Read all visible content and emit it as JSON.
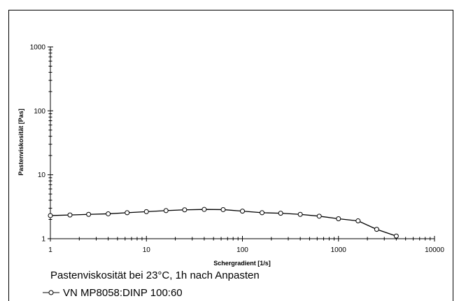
{
  "chart_data": {
    "type": "line",
    "title": "",
    "subtitle": "Pastenviskosität bei 23°C, 1h nach Anpasten",
    "xlabel": "Schergradient  [1/s]",
    "ylabel": "Pastenviskosität  [Pas]",
    "x_scale": "log",
    "y_scale": "log",
    "xlim": [
      1,
      10000
    ],
    "ylim": [
      1,
      1000
    ],
    "x_ticks": [
      "1",
      "10",
      "100",
      "1000",
      "10000"
    ],
    "y_ticks": [
      "1",
      "10",
      "100",
      "1000"
    ],
    "grid": false,
    "legend_position": "bottom-left",
    "series": [
      {
        "name": "VN  MP8058:DINP  100:60",
        "marker": "open-circle",
        "color": "#000000",
        "x": [
          1,
          1.6,
          2.5,
          4,
          6.3,
          10,
          16,
          25,
          40,
          63,
          100,
          160,
          250,
          400,
          630,
          1000,
          1600,
          2500,
          4000
        ],
        "y": [
          2.3,
          2.35,
          2.4,
          2.45,
          2.55,
          2.65,
          2.75,
          2.83,
          2.87,
          2.85,
          2.7,
          2.55,
          2.5,
          2.4,
          2.25,
          2.05,
          1.9,
          1.4,
          1.1
        ]
      }
    ]
  }
}
